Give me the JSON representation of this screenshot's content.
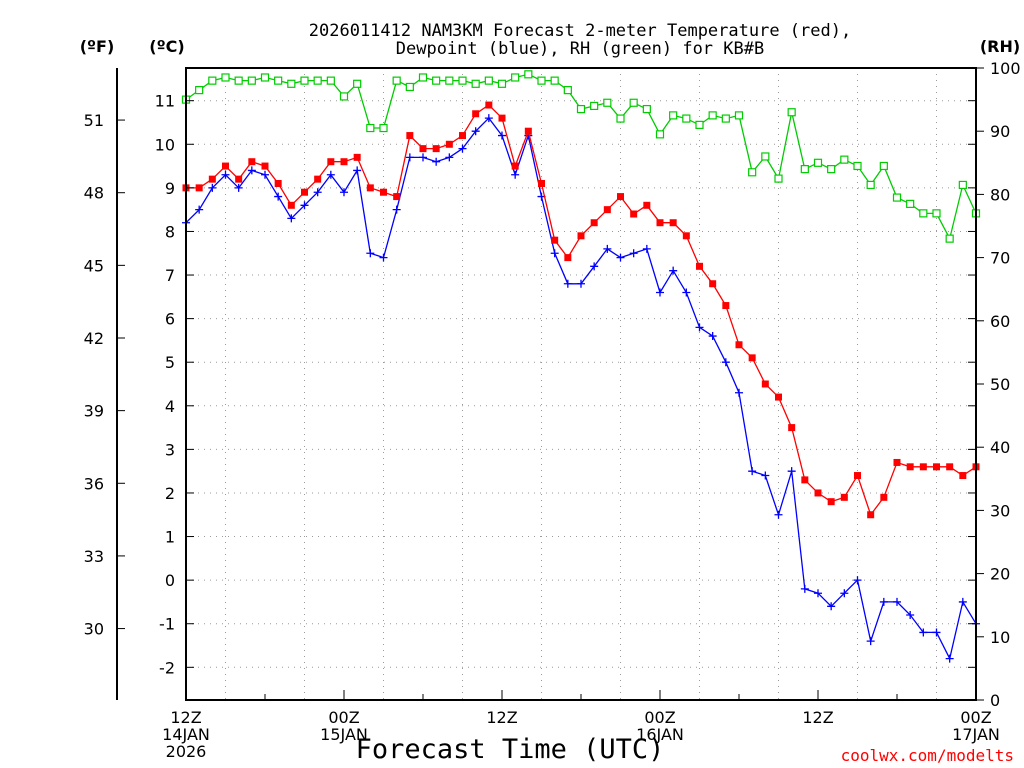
{
  "chart_data": {
    "type": "line",
    "title_line1": "2026011412 NAM3KM Forecast 2-meter Temperature (red),",
    "title_line2": "Dewpoint (blue), RH (green) for KB#B",
    "xlabel": "Forecast Time (UTC)",
    "credit": "coolwx.com/modelts",
    "units": {
      "fahrenheit": "(ºF)",
      "celsius": "(ºC)",
      "rh": "(RH)"
    },
    "x_forecast_hours": [
      0,
      60
    ],
    "x_ticks": [
      {
        "hour": 0,
        "lines": [
          "12Z",
          "14JAN",
          "2026"
        ]
      },
      {
        "hour": 12,
        "lines": [
          "00Z",
          "15JAN"
        ]
      },
      {
        "hour": 24,
        "lines": [
          "12Z"
        ]
      },
      {
        "hour": 36,
        "lines": [
          "00Z",
          "16JAN"
        ]
      },
      {
        "hour": 48,
        "lines": [
          "12Z"
        ]
      },
      {
        "hour": 60,
        "lines": [
          "00Z",
          "17JAN"
        ]
      }
    ],
    "temp_axis_c": {
      "min": -2.75,
      "max": 11.75,
      "ticks": [
        -2,
        -1,
        0,
        1,
        2,
        3,
        4,
        5,
        6,
        7,
        8,
        9,
        10,
        11
      ]
    },
    "temp_axis_f": {
      "ticks": [
        30,
        33,
        36,
        39,
        42,
        45,
        48,
        51
      ]
    },
    "rh_axis": {
      "min": 0,
      "max": 100,
      "ticks": [
        0,
        10,
        20,
        30,
        40,
        50,
        60,
        70,
        80,
        90,
        100
      ]
    },
    "series": [
      {
        "name": "Temperature",
        "unit": "C",
        "color": "#ff0000",
        "marker": "filled-square",
        "values": [
          9.0,
          9.0,
          9.2,
          9.5,
          9.2,
          9.6,
          9.5,
          9.1,
          8.6,
          8.9,
          9.2,
          9.6,
          9.6,
          9.7,
          9.0,
          8.9,
          8.8,
          10.2,
          9.9,
          9.9,
          10.0,
          10.2,
          10.7,
          10.9,
          10.6,
          9.5,
          10.3,
          9.1,
          7.8,
          7.4,
          7.9,
          8.2,
          8.5,
          8.8,
          8.4,
          8.6,
          8.2,
          8.2,
          7.9,
          7.2,
          6.8,
          6.3,
          5.4,
          5.1,
          4.5,
          4.2,
          3.5,
          2.3,
          2.0,
          1.8,
          1.9,
          2.4,
          1.5,
          1.9,
          2.7,
          2.6,
          2.6,
          2.6,
          2.6,
          2.4,
          2.6
        ]
      },
      {
        "name": "Dewpoint",
        "unit": "C",
        "color": "#0000ff",
        "marker": "plus",
        "values": [
          8.2,
          8.5,
          9.0,
          9.3,
          9.0,
          9.4,
          9.3,
          8.8,
          8.3,
          8.6,
          8.9,
          9.3,
          8.9,
          9.4,
          7.5,
          7.4,
          8.5,
          9.7,
          9.7,
          9.6,
          9.7,
          9.9,
          10.3,
          10.6,
          10.2,
          9.3,
          10.2,
          8.8,
          7.5,
          6.8,
          6.8,
          7.2,
          7.6,
          7.4,
          7.5,
          7.6,
          6.6,
          7.1,
          6.6,
          5.8,
          5.6,
          5.0,
          4.3,
          2.5,
          2.4,
          1.5,
          2.5,
          -0.2,
          -0.3,
          -0.6,
          -0.3,
          0.0,
          -1.4,
          -0.5,
          -0.5,
          -0.8,
          -1.2,
          -1.2,
          -1.8,
          -0.5,
          -1.0
        ]
      },
      {
        "name": "RH",
        "unit": "%",
        "color": "#00cc00",
        "marker": "open-square",
        "values": [
          95,
          96.5,
          98,
          98.5,
          98,
          98,
          98.5,
          98,
          97.5,
          98,
          98,
          98,
          95.5,
          97.5,
          90.5,
          90.5,
          98,
          97,
          98.5,
          98,
          98,
          98,
          97.5,
          98,
          97.5,
          98.5,
          99,
          98,
          98,
          96.5,
          93.5,
          94,
          94.5,
          92,
          94.5,
          93.5,
          89.5,
          92.5,
          92,
          91,
          92.5,
          92,
          92.5,
          83.5,
          86,
          82.5,
          93,
          84,
          85,
          84,
          85.5,
          84.5,
          81.5,
          84.5,
          79.5,
          78.5,
          77,
          77,
          73,
          81.5,
          77
        ]
      }
    ]
  }
}
